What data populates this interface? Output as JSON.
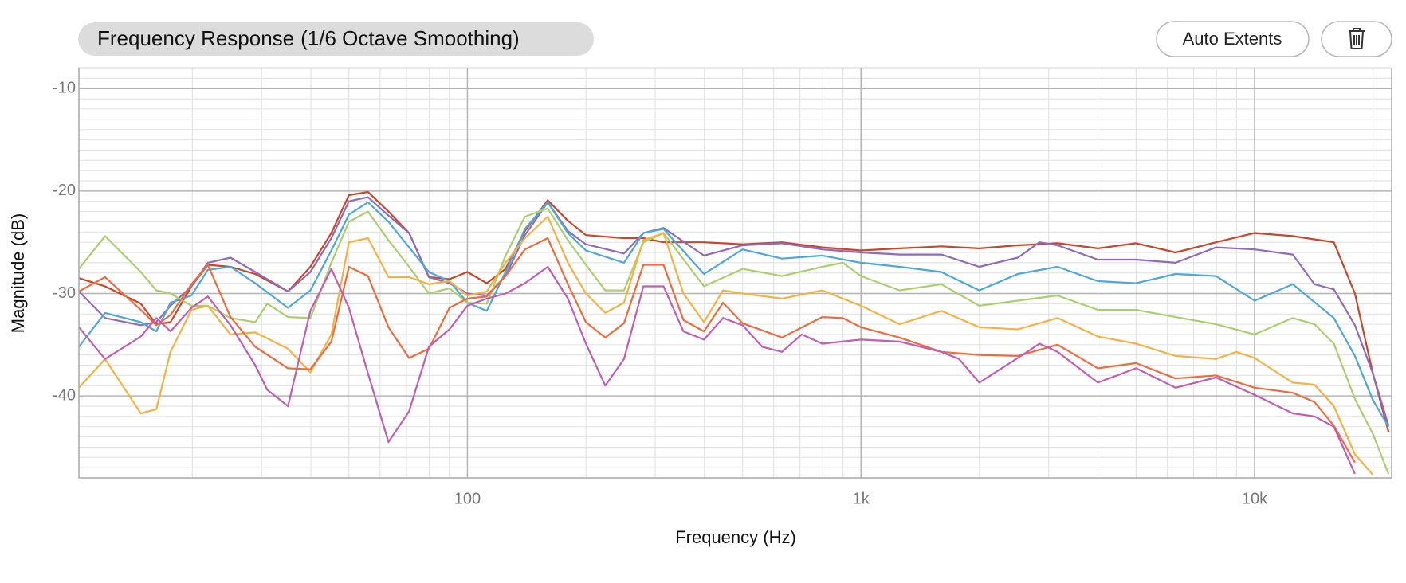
{
  "toolbar": {
    "auto_extents": "Auto Extents"
  },
  "chart_data": {
    "type": "line",
    "title": "Frequency Response",
    "subtitle": "(1/6 Octave Smoothing)",
    "x_label": "Frequency (Hz)",
    "y_label": "Magnitude (dB)",
    "xscale": "log",
    "grid": true,
    "xlim": [
      10.3,
      22300
    ],
    "ylim": [
      -48,
      -8
    ],
    "xticks": [
      100,
      {
        "value": 1000,
        "label": "1k"
      },
      {
        "value": 10000,
        "label": "10k"
      }
    ],
    "yticks": [
      -10,
      -20,
      -30,
      -40
    ],
    "xminorticks": [
      20,
      30,
      40,
      50,
      60,
      70,
      80,
      90,
      200,
      300,
      400,
      500,
      600,
      700,
      800,
      900,
      2000,
      3000,
      4000,
      5000,
      6000,
      7000,
      8000,
      9000,
      20000
    ],
    "yminorticks": [
      -47,
      -46,
      -45,
      -44,
      -43,
      -42,
      -41,
      -39,
      -38,
      -37,
      -36,
      -35,
      -34,
      -33,
      -32,
      -31,
      -29,
      -28,
      -27,
      -26,
      -25,
      -24,
      -23,
      -22,
      -21,
      -19,
      -18,
      -17,
      -16,
      -15,
      -14,
      -13,
      -12,
      -11,
      -9
    ],
    "series": [
      {
        "color": "#c8462a",
        "x": [
          10.3,
          12,
          14.8,
          16.2,
          17.6,
          19.9,
          21.9,
          25,
          28.9,
          35,
          39.9,
          45.1,
          50,
          55.9,
          63,
          71.1,
          79.8,
          90,
          100,
          112,
          125,
          140,
          160,
          180,
          200,
          250,
          280,
          315,
          399,
          500,
          630,
          797,
          1000,
          1253,
          1600,
          1997,
          2503,
          3158,
          3999,
          4999,
          6300,
          7980,
          10000,
          12500,
          15900,
          17990,
          19980,
          21900
        ],
        "values": [
          -28.5,
          -29.3,
          -31,
          -33,
          -32.8,
          -29.3,
          -27.2,
          -27.4,
          -28.1,
          -29.8,
          -27.4,
          -24.1,
          -20.4,
          -20.1,
          -22,
          -24.1,
          -28.4,
          -28.6,
          -27.9,
          -29,
          -27.6,
          -23.9,
          -20.9,
          -22.9,
          -24.3,
          -24.6,
          -24.6,
          -25,
          -25,
          -25.2,
          -25,
          -25.5,
          -25.8,
          -25.6,
          -25.4,
          -25.6,
          -25.3,
          -25.1,
          -25.6,
          -25.1,
          -26,
          -25,
          -24.1,
          -24.4,
          -25,
          -30,
          -37.8,
          -43.5
        ]
      },
      {
        "color": "#8f6bba",
        "x": [
          10.3,
          12,
          14.8,
          16.2,
          17.6,
          19.9,
          21.9,
          25,
          28.9,
          35,
          39.9,
          45.1,
          50,
          55.9,
          63,
          71.1,
          79.8,
          90,
          100,
          112,
          125,
          140,
          160,
          180,
          200,
          250,
          280,
          315,
          399,
          500,
          630,
          797,
          1000,
          1253,
          1600,
          1997,
          2503,
          2842,
          3158,
          3999,
          4999,
          6300,
          7980,
          10000,
          12500,
          14200,
          15900,
          17990,
          19980,
          21900
        ],
        "values": [
          -29.8,
          -32.4,
          -33.1,
          -32.8,
          -31.2,
          -29.3,
          -27,
          -26.5,
          -27.9,
          -29.8,
          -27.9,
          -24.6,
          -21,
          -20.6,
          -22.4,
          -24.1,
          -28.4,
          -29,
          -30,
          -30.2,
          -28.3,
          -24.3,
          -21.1,
          -23.9,
          -25.2,
          -26.1,
          -24.1,
          -23.6,
          -26.3,
          -25.3,
          -25.1,
          -25.7,
          -26,
          -26.2,
          -26.2,
          -27.4,
          -26.5,
          -25,
          -25.3,
          -26.7,
          -26.7,
          -27,
          -25.5,
          -25.7,
          -26.2,
          -29.1,
          -29.6,
          -33.1,
          -37.8,
          -42.9
        ]
      },
      {
        "color": "#4ba8d9",
        "x": [
          10.3,
          12,
          14.8,
          16.2,
          17.6,
          19.9,
          21.9,
          25,
          28.9,
          35,
          39.9,
          45.1,
          50,
          55.9,
          63,
          71.1,
          79.8,
          90,
          100,
          112,
          125,
          140,
          160,
          180,
          200,
          250,
          280,
          315,
          399,
          500,
          630,
          797,
          1000,
          1253,
          1600,
          1997,
          2503,
          3158,
          3999,
          4999,
          6300,
          7980,
          10000,
          12500,
          15900,
          17990,
          19980,
          21900
        ],
        "values": [
          -35.2,
          -31.9,
          -32.8,
          -33.7,
          -30.9,
          -30.2,
          -27.7,
          -27.4,
          -29,
          -31.4,
          -29.7,
          -25.8,
          -22.3,
          -21.1,
          -23,
          -25.5,
          -27.9,
          -28.8,
          -30.9,
          -31.7,
          -27.9,
          -23.7,
          -21.1,
          -24.1,
          -25.8,
          -27,
          -24.1,
          -23.7,
          -28.1,
          -25.7,
          -26.6,
          -26.3,
          -27,
          -27.4,
          -27.9,
          -29.7,
          -28.1,
          -27.4,
          -28.8,
          -29,
          -28.1,
          -28.3,
          -30.7,
          -29.1,
          -32.4,
          -36.1,
          -40.4,
          -43
        ]
      },
      {
        "color": "#a9d06b",
        "x": [
          10.3,
          12,
          14.8,
          16.2,
          17.6,
          19.9,
          21.9,
          25,
          28.9,
          31,
          35,
          39.9,
          45.1,
          50,
          55.9,
          63,
          71.1,
          79.8,
          90,
          100,
          112,
          125,
          140,
          160,
          180,
          200,
          224,
          250,
          280,
          315,
          399,
          500,
          630,
          797,
          899,
          1000,
          1253,
          1600,
          1997,
          2503,
          3158,
          3999,
          4999,
          6300,
          7980,
          10000,
          12500,
          14200,
          15900,
          17990,
          19980,
          21900
        ],
        "values": [
          -27.6,
          -24.4,
          -27.9,
          -29.7,
          -30,
          -31.2,
          -31.2,
          -32.4,
          -32.8,
          -31,
          -32.3,
          -32.4,
          -27,
          -23,
          -22,
          -24.8,
          -27.4,
          -30,
          -29.5,
          -30.9,
          -31,
          -26.3,
          -22.5,
          -21.7,
          -24.8,
          -27.2,
          -29.7,
          -29.7,
          -25,
          -24.1,
          -29.3,
          -27.6,
          -28.3,
          -27.4,
          -27,
          -28.3,
          -29.7,
          -29.1,
          -31.2,
          -30.7,
          -30.2,
          -31.6,
          -31.6,
          -32.3,
          -33,
          -34,
          -32.4,
          -33,
          -34.9,
          -40.3,
          -43.7,
          -47.6
        ]
      },
      {
        "color": "#f6b13f",
        "x": [
          10.3,
          12,
          14.8,
          16.2,
          17.6,
          19.9,
          21.9,
          25,
          28.9,
          35,
          39.9,
          45.1,
          50,
          55.9,
          63,
          71.1,
          79.8,
          90,
          100,
          112,
          125,
          140,
          160,
          180,
          200,
          224,
          250,
          280,
          315,
          354,
          399,
          446,
          500,
          630,
          797,
          1000,
          1253,
          1600,
          1997,
          2503,
          3158,
          3999,
          4999,
          6300,
          7980,
          8990,
          10000,
          12500,
          14200,
          15900,
          17990,
          19980
        ],
        "values": [
          -39.2,
          -36.4,
          -41.7,
          -41.3,
          -35.7,
          -31.6,
          -31.2,
          -34,
          -33.8,
          -35.4,
          -37.7,
          -34,
          -25,
          -24.6,
          -28.4,
          -28.4,
          -29.1,
          -28.8,
          -30.2,
          -29.8,
          -27,
          -24.6,
          -22.5,
          -27,
          -30,
          -31.9,
          -30.9,
          -24.8,
          -24.1,
          -30,
          -32.8,
          -29.7,
          -30,
          -30.5,
          -29.7,
          -31.2,
          -33,
          -31.7,
          -33.3,
          -33.5,
          -32.4,
          -34.2,
          -34.9,
          -36.1,
          -36.4,
          -35.7,
          -36.3,
          -38.7,
          -38.9,
          -41,
          -45.7,
          -47.7
        ]
      },
      {
        "color": "#f06b3b",
        "x": [
          10.3,
          12,
          14.8,
          16.2,
          17.6,
          19.9,
          21.9,
          25,
          28.9,
          35,
          39.9,
          45.1,
          50,
          55.9,
          63,
          71.1,
          79.8,
          90,
          100,
          112,
          125,
          140,
          160,
          180,
          200,
          224,
          250,
          280,
          315,
          354,
          399,
          446,
          500,
          630,
          797,
          899,
          1000,
          1253,
          1600,
          1997,
          2503,
          3158,
          3999,
          4999,
          6300,
          7980,
          10000,
          12500,
          14200,
          15900,
          17990
        ],
        "values": [
          -29.8,
          -28.4,
          -31.6,
          -33.1,
          -32.1,
          -29.1,
          -27.2,
          -32.3,
          -35.2,
          -37.3,
          -37.4,
          -34.7,
          -27.4,
          -28.3,
          -33.3,
          -36.3,
          -35.4,
          -31.4,
          -30.5,
          -30.3,
          -28.3,
          -25.7,
          -24.6,
          -29.1,
          -32.8,
          -34.3,
          -32.9,
          -27.2,
          -27.2,
          -32.6,
          -33.7,
          -30.9,
          -32.9,
          -34.3,
          -32.3,
          -32.4,
          -33.3,
          -34.3,
          -35.7,
          -36,
          -36.1,
          -35,
          -37.3,
          -36.8,
          -38.3,
          -38,
          -39.2,
          -39.7,
          -40.6,
          -42.9,
          -46.5
        ]
      },
      {
        "color": "#c35db1",
        "x": [
          10.3,
          12,
          14.8,
          16.2,
          17.6,
          19.9,
          21.9,
          25,
          28.9,
          31,
          35,
          39.9,
          45.1,
          50,
          55.9,
          63,
          71.1,
          79.8,
          90,
          100,
          112,
          125,
          140,
          160,
          180,
          200,
          224,
          250,
          280,
          315,
          354,
          399,
          446,
          500,
          561,
          630,
          707,
          797,
          1000,
          1253,
          1600,
          1775,
          1997,
          2503,
          2842,
          3158,
          3999,
          4999,
          6300,
          7980,
          10000,
          12500,
          14200,
          15900,
          17990
        ],
        "values": [
          -33.3,
          -36.4,
          -34.2,
          -32.4,
          -33.7,
          -31.4,
          -30.3,
          -33.1,
          -37,
          -39.4,
          -41,
          -31.7,
          -27.6,
          -31.4,
          -37.8,
          -44.5,
          -41.5,
          -35.2,
          -33.5,
          -31.2,
          -30.5,
          -30,
          -29,
          -27.4,
          -30.5,
          -34.9,
          -39,
          -36.4,
          -29.3,
          -29.3,
          -33.7,
          -34.5,
          -32.4,
          -33.1,
          -35.2,
          -35.7,
          -34,
          -34.9,
          -34.5,
          -34.7,
          -35.7,
          -36.4,
          -38.7,
          -36.3,
          -34.9,
          -35.7,
          -38.7,
          -37.3,
          -39.2,
          -38.2,
          -39.9,
          -41.7,
          -42,
          -43,
          -47.6
        ]
      }
    ]
  }
}
